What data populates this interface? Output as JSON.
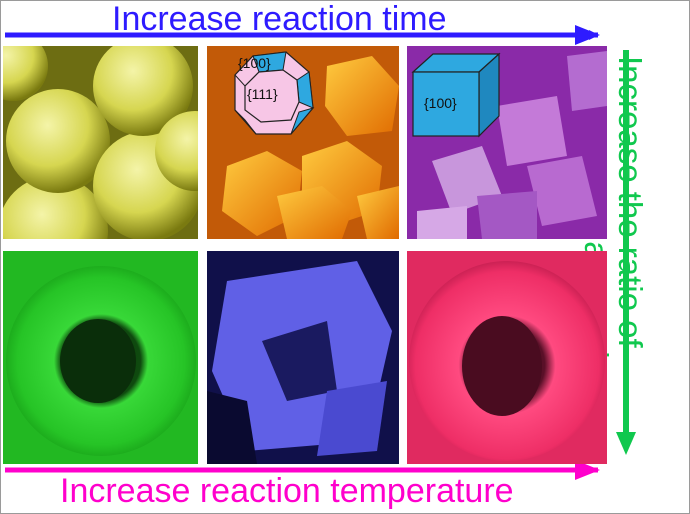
{
  "labels": {
    "top_axis": "Increase reaction time",
    "bottom_axis": "Increase reaction temperature",
    "right_axis_line1": "Increase the ratio of",
    "right_axis_line2": "precursor to ammonia"
  },
  "panels": {
    "p2_facet_a": "{100}",
    "p2_facet_b": "{111}",
    "p3_facet": "{100}"
  },
  "colors": {
    "top_arrow": "#2e1bff",
    "bottom_arrow": "#ff00cc",
    "right_arrow": "#10c84e",
    "panel_yellow": "#b8b830",
    "panel_orange": "#ee8a10",
    "panel_purple": "#a146c6",
    "panel_green": "#22c422",
    "panel_blue": "#5a5ae0",
    "panel_pink": "#f0306a",
    "crystal_face_100": "#2ea8e0",
    "crystal_face_111": "#f7c6e6"
  }
}
